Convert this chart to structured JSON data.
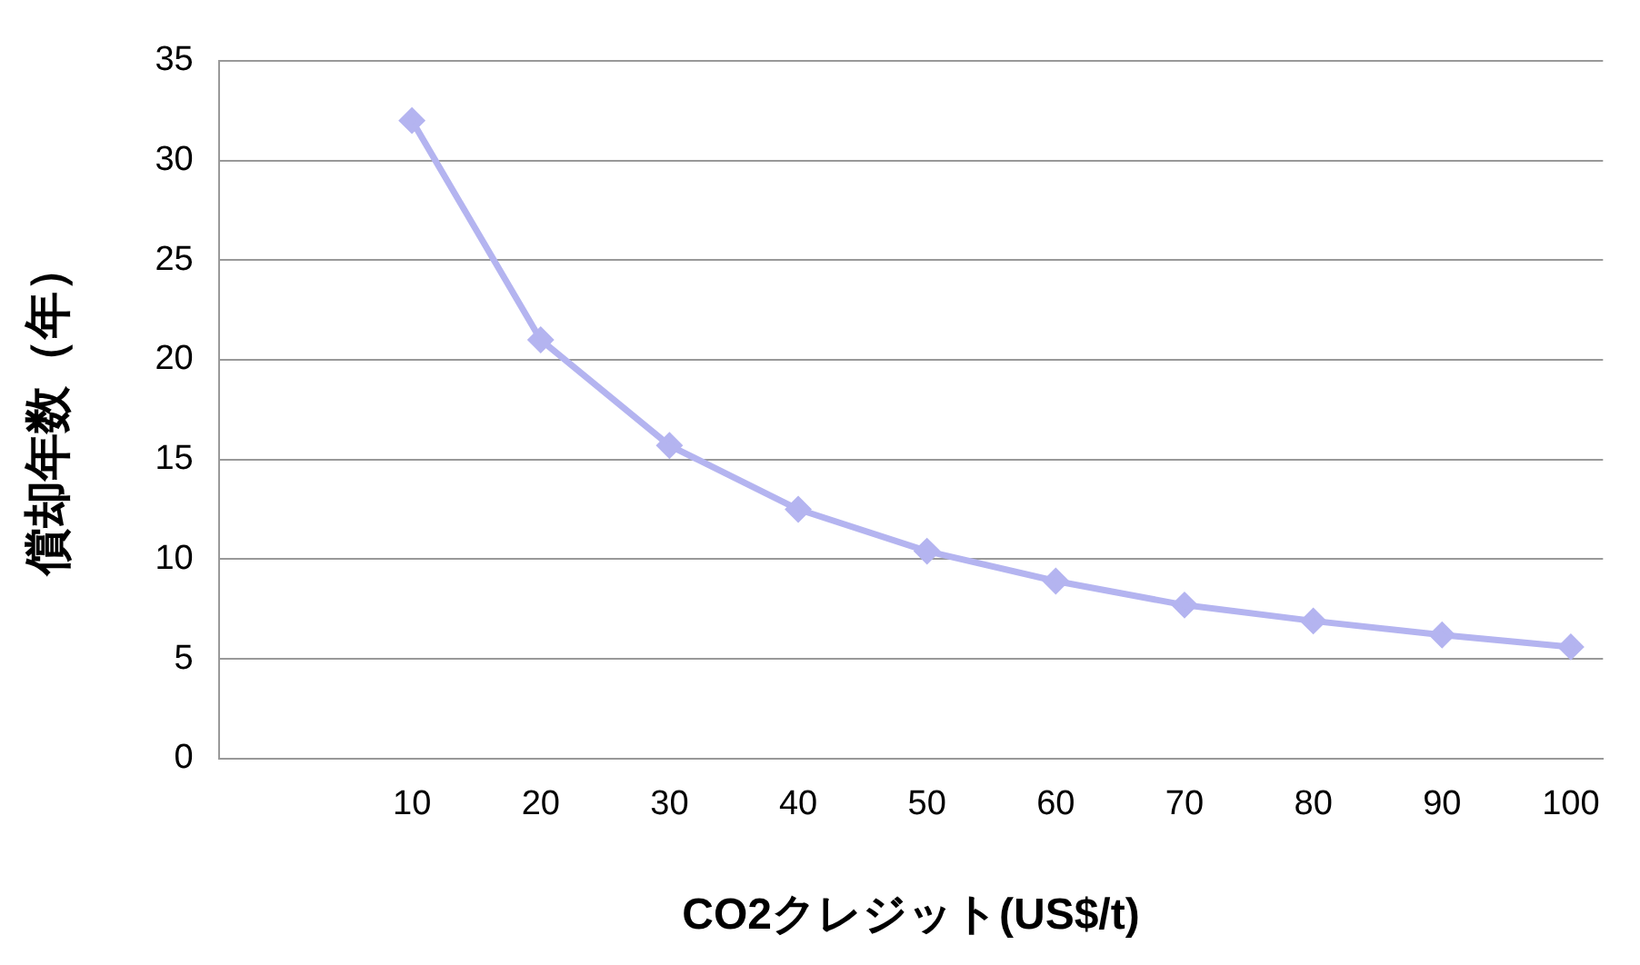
{
  "chart_data": {
    "type": "line",
    "xlabel": "CO2クレジット(US$/t)",
    "ylabel": "償却年数（年）",
    "x": [
      10,
      20,
      30,
      40,
      50,
      60,
      70,
      80,
      90,
      100
    ],
    "series": [
      {
        "color": "#b4b4f0",
        "values": [
          32,
          21,
          15.7,
          12.5,
          10.4,
          8.9,
          7.7,
          6.9,
          6.2,
          5.6
        ]
      }
    ],
    "xlim": [
      -5,
      102.5
    ],
    "xticks": [
      10,
      20,
      30,
      40,
      50,
      60,
      70,
      80,
      90,
      100
    ],
    "ylim": [
      0,
      35
    ],
    "yticks": [
      0,
      5,
      10,
      15,
      20,
      25,
      30,
      35
    ],
    "grid": "y",
    "legend": false,
    "marker": "diamond",
    "line_style": "solid"
  }
}
